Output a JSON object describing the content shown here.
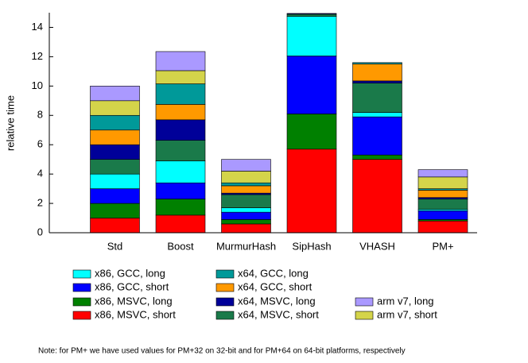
{
  "chart_data": {
    "type": "stacked_bar",
    "y_label": "relative time",
    "categories": [
      "Std",
      "Boost",
      "MurmurHash",
      "SipHash",
      "VHASH",
      "PM+"
    ],
    "ylim": [
      0,
      15
    ],
    "yticks": [
      0,
      2,
      4,
      6,
      8,
      10,
      12,
      14
    ],
    "series": [
      {
        "name": "x86, MSVC, short",
        "color": "#ff0000",
        "values": [
          1,
          1.2,
          0.6,
          5.7,
          5.0,
          0.8
        ]
      },
      {
        "name": "x86, MSVC, long",
        "color": "#008000",
        "values": [
          1,
          1.1,
          0.3,
          2.4,
          0.3,
          0.1
        ]
      },
      {
        "name": "x86, GCC, short",
        "color": "#0000ff",
        "values": [
          1,
          1.1,
          0.5,
          3.95,
          2.6,
          0.6
        ]
      },
      {
        "name": "x86, GCC, long",
        "color": "#00ffff",
        "values": [
          1,
          1.5,
          0.3,
          2.7,
          0.3,
          0.1
        ]
      },
      {
        "name": "x64, MSVC, short",
        "color": "#1a7a4a",
        "values": [
          1,
          1.4,
          0.9,
          0.15,
          2.0,
          0.7
        ]
      },
      {
        "name": "x64, MSVC, long",
        "color": "#000099",
        "values": [
          1,
          1.4,
          0.1,
          0.05,
          0.15,
          0.1
        ]
      },
      {
        "name": "x64, GCC, short",
        "color": "#ff9900",
        "values": [
          1,
          1.05,
          0.5,
          0,
          1.15,
          0.5
        ]
      },
      {
        "name": "x64, GCC, long",
        "color": "#009999",
        "values": [
          1,
          1.4,
          0.2,
          0,
          0.1,
          0.1
        ]
      },
      {
        "name": "arm v7, short",
        "color": "#d4d44a",
        "values": [
          1,
          0.9,
          0.8,
          0,
          0,
          0.8
        ]
      },
      {
        "name": "arm v7, long",
        "color": "#aa99ff",
        "values": [
          1,
          1.3,
          0.8,
          0,
          0,
          0.5
        ]
      }
    ],
    "note": "Note: for PM+ we have used values for PM+32 on 32-bit and for PM+64 on 64-bit platforms, respectively"
  }
}
